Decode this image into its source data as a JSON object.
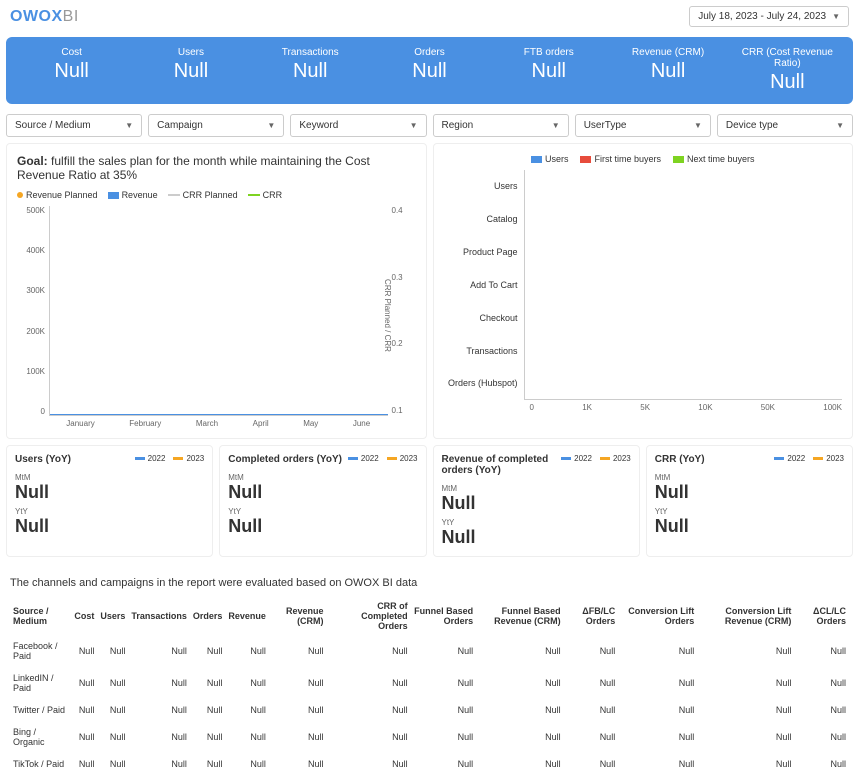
{
  "logo": {
    "brand": "OWOX",
    "suffix": "BI"
  },
  "date_range": "July 18, 2023 - July 24, 2023",
  "colors": {
    "primary": "#4a90e2",
    "orange": "#f5a623",
    "green": "#7ed321",
    "gray": "#cccccc",
    "red": "#e74c3c"
  },
  "kpis": [
    {
      "label": "Cost",
      "value": "Null"
    },
    {
      "label": "Users",
      "value": "Null"
    },
    {
      "label": "Transactions",
      "value": "Null"
    },
    {
      "label": "Orders",
      "value": "Null"
    },
    {
      "label": "FTB orders",
      "value": "Null"
    },
    {
      "label": "Revenue (CRM)",
      "value": "Null"
    },
    {
      "label": "CRR (Cost Revenue Ratio)",
      "value": "Null"
    }
  ],
  "filters": [
    "Source / Medium",
    "Campaign",
    "Keyword",
    "Region",
    "UserType",
    "Device type"
  ],
  "goal": {
    "prefix": "Goal:",
    "text": "fulfill the sales plan for the month while maintaining the Cost Revenue Ratio at 35%",
    "legend": [
      {
        "label": "Revenue Planned",
        "type": "dot",
        "color": "#f5a623"
      },
      {
        "label": "Revenue",
        "type": "swatch",
        "color": "#4a90e2"
      },
      {
        "label": "CRR Planned",
        "type": "line",
        "color": "#cccccc"
      },
      {
        "label": "CRR",
        "type": "line",
        "color": "#7ed321"
      }
    ],
    "y_left": [
      "500K",
      "400K",
      "300K",
      "200K",
      "100K",
      "0"
    ],
    "y_right": [
      "0.4",
      "0.3",
      "0.2",
      "0.1"
    ],
    "y_right_label": "CRR Planned / CRR",
    "x": [
      "January",
      "February",
      "March",
      "April",
      "May",
      "June"
    ]
  },
  "funnel": {
    "legend": [
      {
        "label": "Users",
        "color": "#4a90e2"
      },
      {
        "label": "First time buyers",
        "color": "#e74c3c"
      },
      {
        "label": "Next time buyers",
        "color": "#7ed321"
      }
    ],
    "stages": [
      "Users",
      "Catalog",
      "Product Page",
      "Add To Cart",
      "Checkout",
      "Transactions",
      "Orders (Hubspot)"
    ],
    "x": [
      "0",
      "1K",
      "5K",
      "10K",
      "50K",
      "100K"
    ]
  },
  "yoy": [
    {
      "title": "Users (YoY)",
      "mtm_label": "MtM",
      "mtm": "Null",
      "yty_label": "YtY",
      "yty": "Null"
    },
    {
      "title": "Completed orders (YoY)",
      "mtm_label": "MtM",
      "mtm": "Null",
      "yty_label": "YtY",
      "yty": "Null"
    },
    {
      "title": "Revenue of completed orders (YoY)",
      "mtm_label": "MtM",
      "mtm": "Null",
      "yty_label": "YtY",
      "yty": "Null"
    },
    {
      "title": "CRR (YoY)",
      "mtm_label": "MtM",
      "mtm": "Null",
      "yty_label": "YtY",
      "yty": "Null"
    }
  ],
  "yoy_legend": [
    {
      "label": "2022",
      "color": "#4a90e2"
    },
    {
      "label": "2023",
      "color": "#f5a623"
    }
  ],
  "table": {
    "description": "The channels and campaigns in the report were evaluated based on OWOX BI data",
    "columns": [
      "Source / Medium",
      "Cost",
      "Users",
      "Transactions",
      "Orders",
      "Revenue",
      "Revenue (CRM)",
      "CRR of Completed Orders",
      "Funnel Based Orders",
      "Funnel Based Revenue (CRM)",
      "ΔFB/LC Orders",
      "Conversion Lift Orders",
      "Conversion Lift Revenue (CRM)",
      "ΔCL/LC Orders"
    ],
    "rows": [
      [
        "Facebook / Paid",
        "Null",
        "Null",
        "Null",
        "Null",
        "Null",
        "Null",
        "Null",
        "Null",
        "Null",
        "Null",
        "Null",
        "Null",
        "Null"
      ],
      [
        "LinkedIN / Paid",
        "Null",
        "Null",
        "Null",
        "Null",
        "Null",
        "Null",
        "Null",
        "Null",
        "Null",
        "Null",
        "Null",
        "Null",
        "Null"
      ],
      [
        "Twitter / Paid",
        "Null",
        "Null",
        "Null",
        "Null",
        "Null",
        "Null",
        "Null",
        "Null",
        "Null",
        "Null",
        "Null",
        "Null",
        "Null"
      ],
      [
        "Bing / Organic",
        "Null",
        "Null",
        "Null",
        "Null",
        "Null",
        "Null",
        "Null",
        "Null",
        "Null",
        "Null",
        "Null",
        "Null",
        "Null"
      ],
      [
        "TikTok / Paid",
        "Null",
        "Null",
        "Null",
        "Null",
        "Null",
        "Null",
        "Null",
        "Null",
        "Null",
        "Null",
        "Null",
        "Null",
        "Null"
      ]
    ]
  }
}
